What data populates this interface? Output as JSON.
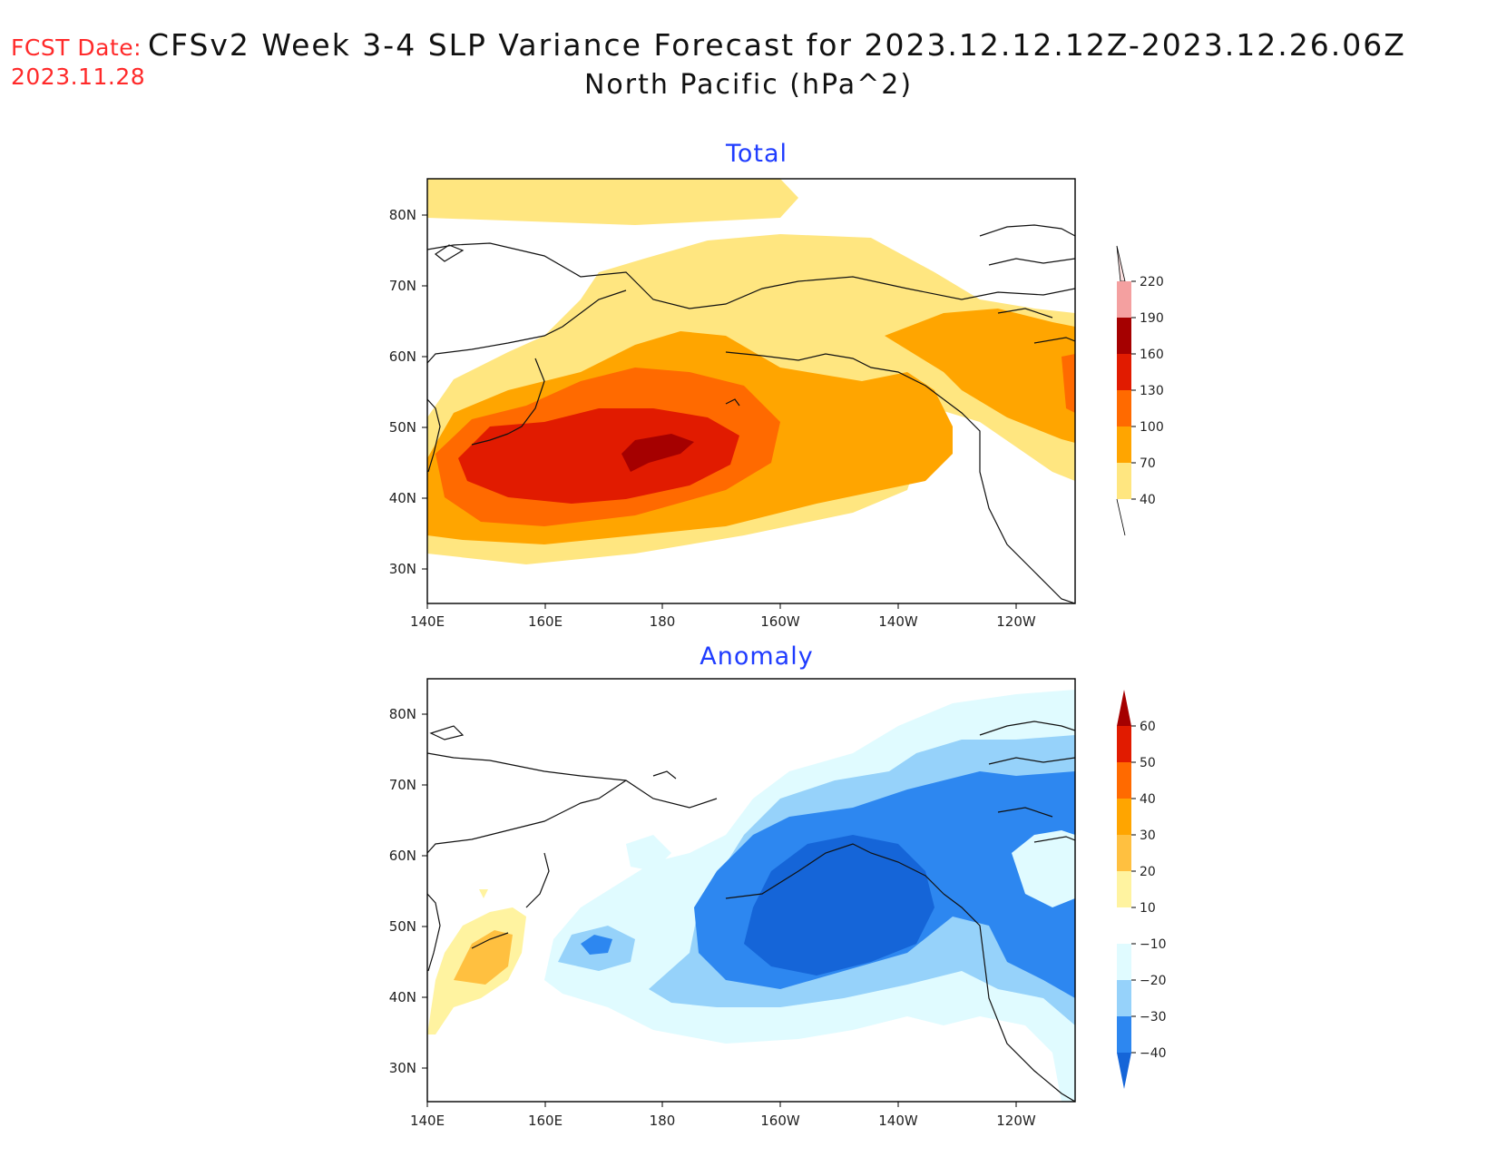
{
  "header": {
    "fcst_label": "FCST Date:",
    "fcst_date": "2023.11.28",
    "title_line1": "CFSv2 Week 3-4 SLP Variance Forecast for 2023.12.12.12Z-2023.12.26.06Z",
    "title_line2": "North Pacific (hPa^2)"
  },
  "panels": [
    {
      "title": "Total",
      "lat_labels": [
        "80N",
        "70N",
        "60N",
        "50N",
        "40N",
        "30N"
      ],
      "lon_labels": [
        "140E",
        "160E",
        "180",
        "160W",
        "140W",
        "120W"
      ],
      "colorbar": {
        "levels": [
          "40",
          "70",
          "100",
          "130",
          "160",
          "190",
          "220"
        ],
        "colors": [
          "#ffe680",
          "#ffa500",
          "#ff6a00",
          "#e11b00",
          "#a50000",
          "#f4a0a0",
          "#fce0e0"
        ]
      }
    },
    {
      "title": "Anomaly",
      "lat_labels": [
        "80N",
        "70N",
        "60N",
        "50N",
        "40N",
        "30N"
      ],
      "lon_labels": [
        "140E",
        "160E",
        "180",
        "160W",
        "140W",
        "120W"
      ],
      "colorbar": {
        "levels": [
          "60",
          "50",
          "40",
          "30",
          "20",
          "10",
          "−10",
          "−20",
          "−30",
          "−40"
        ],
        "colors": [
          "#a50000",
          "#e11b00",
          "#ff6a00",
          "#ffa500",
          "#ffc040",
          "#fff3a0",
          "#ffffff",
          "#e0fbff",
          "#96d2fa",
          "#2d87f0",
          "#1565d8"
        ]
      }
    }
  ]
}
